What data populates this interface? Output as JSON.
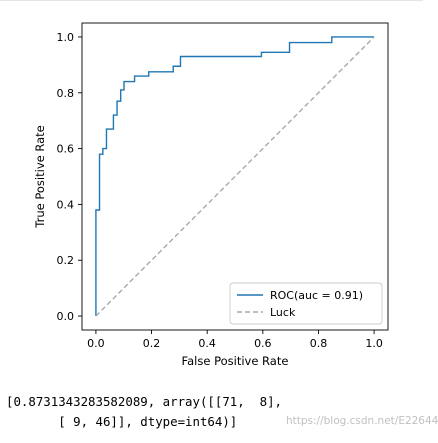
{
  "chart_data": {
    "type": "line",
    "xlabel": "False Positive Rate",
    "ylabel": "True Positive Rate",
    "xlim": [
      -0.05,
      1.05
    ],
    "ylim": [
      -0.05,
      1.05
    ],
    "xticks": [
      0.0,
      0.2,
      0.4,
      0.6,
      0.8,
      1.0
    ],
    "yticks": [
      0.0,
      0.2,
      0.4,
      0.6,
      0.8,
      1.0
    ],
    "xtick_labels": [
      "0.0",
      "0.2",
      "0.4",
      "0.6",
      "0.8",
      "1.0"
    ],
    "ytick_labels": [
      "0.0",
      "0.2",
      "0.4",
      "0.6",
      "0.8",
      "1.0"
    ],
    "grid": false,
    "legend_position": "lower-right",
    "series": [
      {
        "name": "ROC(auc = 0.91)",
        "color": "#1f77b4",
        "style": "solid",
        "x": [
          0.0,
          0.0,
          0.0,
          0.013,
          0.013,
          0.025,
          0.025,
          0.038,
          0.038,
          0.063,
          0.063,
          0.076,
          0.076,
          0.089,
          0.089,
          0.101,
          0.101,
          0.139,
          0.139,
          0.19,
          0.19,
          0.278,
          0.278,
          0.304,
          0.304,
          0.595,
          0.595,
          0.696,
          0.696,
          0.848,
          0.848,
          1.0
        ],
        "y": [
          0.0,
          0.02,
          0.38,
          0.38,
          0.58,
          0.58,
          0.6,
          0.6,
          0.67,
          0.67,
          0.72,
          0.72,
          0.77,
          0.77,
          0.81,
          0.81,
          0.84,
          0.84,
          0.86,
          0.86,
          0.875,
          0.875,
          0.895,
          0.895,
          0.93,
          0.93,
          0.945,
          0.945,
          0.98,
          0.98,
          1.0,
          1.0
        ]
      },
      {
        "name": "Luck",
        "color": "#a9a9a9",
        "style": "dashed",
        "x": [
          0.0,
          1.0
        ],
        "y": [
          0.0,
          1.0
        ]
      }
    ]
  },
  "output": {
    "line1": "[0.8731343283582089, array([[71,  8],",
    "line2": "       [ 9, 46]], dtype=int64)]"
  },
  "watermark": "https://blog.csdn.net/E22644"
}
